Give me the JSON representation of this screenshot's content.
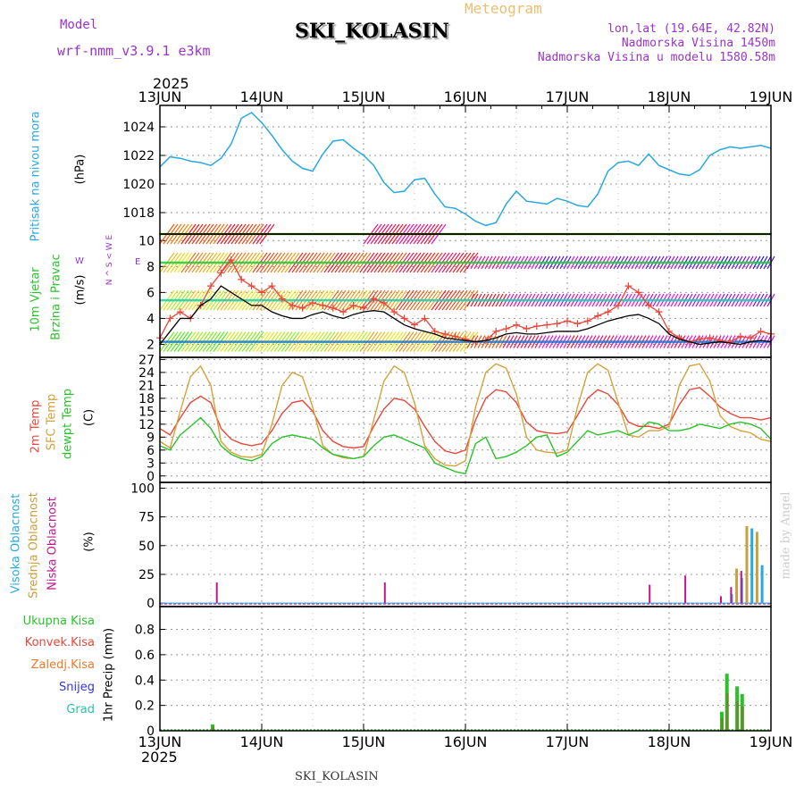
{
  "header": {
    "model_label": "Model",
    "model_name": "wrf-nmm_v3.9.1  e3km",
    "station": "SKI_KOLASIN",
    "meteogram": "Meteogram",
    "lonlat": "lon,lat (19.64E, 42.82N)",
    "elevation": "Nadmorska Visina 1450m",
    "model_elevation": "Nadmorska Visina u modelu 1580.58m"
  },
  "footer": {
    "station": "SKI_KOLASIN",
    "credit": "made by Angel"
  },
  "time_axis": {
    "year_top": "2025",
    "year_bottom": "2025",
    "labels": [
      "13JUN",
      "14JUN",
      "15JUN",
      "16JUN",
      "17JUN",
      "18JUN",
      "19JUN"
    ]
  },
  "colors": {
    "pressure": "#29a8e0",
    "temp2m": "#e8473a",
    "sfc": "#d4a23a",
    "dew": "#29c329",
    "wind_obs": "#e8473a",
    "wind_model": "#000000",
    "purple": "#9933cc",
    "high_cloud": "#29a8e0",
    "mid_cloud": "#c8a040",
    "low_cloud": "#c0188c",
    "total_precip": "#29c329",
    "conv_precip": "#e8473a",
    "frz_precip": "#f07828",
    "snow": "#3333ee",
    "hail": "#29c3a8"
  },
  "labels": {
    "pressure": "Pritisak na nivou mora",
    "pressure_unit": "(hPa)",
    "wind1": "10m Vjetar",
    "wind2": "Brzina i Pravac",
    "wind_unit": "(m/s)",
    "compass": "N  ^  S  <  W  E",
    "compass_w": "W",
    "compass_e": "E",
    "temp_2m": "2m Temp",
    "temp_sfc": "SFC Temp",
    "temp_dew": "dewpt Temp",
    "temp_unit": "(C)",
    "cloud_high": "Visoka Oblacnost",
    "cloud_mid": "Srednja Oblacnost",
    "cloud_low": "Niska Oblacnost",
    "cloud_unit": "(%)",
    "precip_total": "Ukupna Kisa",
    "precip_conv": "Konvek.Kisa",
    "precip_frz": "Zaledj.Kisa",
    "precip_snow": "Snijeg",
    "precip_hail": "Grad",
    "precip_unit": "1hr Precip (mm)"
  },
  "chart_data": [
    {
      "type": "line",
      "title": "Pritisak na nivou mora",
      "ylabel": "(hPa)",
      "ylim": [
        1016.5,
        1025.5
      ],
      "yticks": [
        1018,
        1020,
        1022,
        1024
      ],
      "x_days": [
        0,
        0.1,
        0.2,
        0.3,
        0.4,
        0.5,
        0.6,
        0.7,
        0.8,
        0.9,
        1.0,
        1.1,
        1.2,
        1.3,
        1.4,
        1.5,
        1.6,
        1.7,
        1.8,
        1.9,
        2.0,
        2.1,
        2.2,
        2.3,
        2.4,
        2.5,
        2.6,
        2.7,
        2.8,
        2.9,
        3.0,
        3.1,
        3.2,
        3.3,
        3.4,
        3.5,
        3.6,
        3.7,
        3.8,
        3.9,
        4.0,
        4.1,
        4.2,
        4.3,
        4.4,
        4.5,
        4.6,
        4.7,
        4.8,
        4.9,
        5.0,
        5.1,
        5.2,
        5.3,
        5.4,
        5.5,
        5.6,
        5.7,
        5.8,
        5.9,
        6.0
      ],
      "series": [
        {
          "name": "Pressure",
          "color": "pressure",
          "values": [
            1021.2,
            1021.9,
            1021.8,
            1021.6,
            1021.5,
            1021.3,
            1021.8,
            1022.8,
            1024.6,
            1025.0,
            1024.3,
            1023.4,
            1022.4,
            1021.6,
            1021.1,
            1020.9,
            1022.1,
            1023.0,
            1023.1,
            1022.5,
            1022.0,
            1021.3,
            1020.1,
            1019.4,
            1019.5,
            1020.3,
            1020.4,
            1019.3,
            1018.4,
            1018.3,
            1017.9,
            1017.4,
            1017.1,
            1017.3,
            1018.6,
            1019.5,
            1018.8,
            1018.7,
            1018.6,
            1019.0,
            1018.8,
            1018.5,
            1018.4,
            1019.3,
            1020.9,
            1021.5,
            1021.6,
            1021.3,
            1022.1,
            1021.3,
            1021.0,
            1020.7,
            1020.6,
            1021.0,
            1022.0,
            1022.4,
            1022.6,
            1022.5,
            1022.6,
            1022.7,
            1022.5
          ]
        }
      ]
    },
    {
      "type": "line",
      "title": "10m Vjetar Brzina i Pravac",
      "ylabel": "(m/s)",
      "ylim": [
        1,
        10.5
      ],
      "yticks": [
        2,
        4,
        6,
        8,
        10
      ],
      "x_days": [
        0,
        0.1,
        0.2,
        0.3,
        0.4,
        0.5,
        0.6,
        0.7,
        0.8,
        0.9,
        1.0,
        1.1,
        1.2,
        1.3,
        1.4,
        1.5,
        1.6,
        1.7,
        1.8,
        1.9,
        2.0,
        2.1,
        2.2,
        2.3,
        2.4,
        2.5,
        2.6,
        2.7,
        2.8,
        2.9,
        3.0,
        3.1,
        3.2,
        3.3,
        3.4,
        3.5,
        3.6,
        3.7,
        3.8,
        3.9,
        4.0,
        4.1,
        4.2,
        4.3,
        4.4,
        4.5,
        4.6,
        4.7,
        4.8,
        4.9,
        5.0,
        5.1,
        5.2,
        5.3,
        5.4,
        5.5,
        5.6,
        5.7,
        5.8,
        5.9,
        6.0
      ],
      "series": [
        {
          "name": "Obs wind",
          "color": "wind_obs",
          "values": [
            2.5,
            4.0,
            4.5,
            4.0,
            5.0,
            6.5,
            7.5,
            8.5,
            7.0,
            6.5,
            6.0,
            6.5,
            5.5,
            5.0,
            4.8,
            5.2,
            5.0,
            4.8,
            4.5,
            5.0,
            4.8,
            5.5,
            5.2,
            4.5,
            4.0,
            3.5,
            4.0,
            3.0,
            2.8,
            2.6,
            2.4,
            2.2,
            2.3,
            3.0,
            3.2,
            3.5,
            3.2,
            3.4,
            3.5,
            3.6,
            3.8,
            3.6,
            3.8,
            4.2,
            4.5,
            5.0,
            6.5,
            6.0,
            5.0,
            4.5,
            3.0,
            2.5,
            2.2,
            2.4,
            2.5,
            2.3,
            2.2,
            2.6,
            2.5,
            3.0,
            2.8
          ]
        },
        {
          "name": "Model wind",
          "color": "wind_model",
          "values": [
            2.0,
            3.0,
            4.0,
            4.0,
            5.0,
            5.5,
            6.5,
            6.0,
            5.5,
            5.0,
            5.0,
            4.5,
            4.2,
            4.0,
            4.0,
            4.3,
            4.5,
            4.2,
            4.0,
            4.3,
            4.5,
            4.6,
            4.5,
            4.0,
            3.5,
            3.2,
            3.0,
            2.8,
            2.5,
            2.4,
            2.3,
            2.2,
            2.3,
            2.5,
            2.8,
            2.9,
            2.8,
            2.8,
            2.9,
            3.0,
            3.0,
            3.0,
            3.2,
            3.5,
            3.8,
            4.0,
            4.2,
            4.3,
            4.0,
            3.6,
            2.8,
            2.4,
            2.2,
            2.0,
            2.1,
            2.2,
            2.1,
            2.0,
            2.2,
            2.3,
            2.2
          ]
        }
      ]
    },
    {
      "type": "line",
      "title": "2m Temp / SFC Temp / dewpt Temp",
      "ylabel": "(C)",
      "ylim": [
        -1.5,
        27.5
      ],
      "yticks": [
        0,
        3,
        6,
        9,
        12,
        15,
        18,
        21,
        24,
        27
      ],
      "x_days": [
        0,
        0.1,
        0.2,
        0.3,
        0.4,
        0.5,
        0.6,
        0.7,
        0.8,
        0.9,
        1.0,
        1.1,
        1.2,
        1.3,
        1.4,
        1.5,
        1.6,
        1.7,
        1.8,
        1.9,
        2.0,
        2.1,
        2.2,
        2.3,
        2.4,
        2.5,
        2.6,
        2.7,
        2.8,
        2.9,
        3.0,
        3.1,
        3.2,
        3.3,
        3.4,
        3.5,
        3.6,
        3.7,
        3.8,
        3.9,
        4.0,
        4.1,
        4.2,
        4.3,
        4.4,
        4.5,
        4.6,
        4.7,
        4.8,
        4.9,
        5.0,
        5.1,
        5.2,
        5.3,
        5.4,
        5.5,
        5.6,
        5.7,
        5.8,
        5.9,
        6.0
      ],
      "series": [
        {
          "name": "2m Temp",
          "color": "temp2m",
          "values": [
            11.0,
            9.5,
            13.5,
            17.0,
            18.5,
            17.0,
            11.0,
            8.5,
            7.5,
            7.0,
            7.5,
            10.5,
            14.5,
            17.0,
            17.5,
            15.0,
            10.5,
            8.0,
            6.8,
            6.5,
            6.8,
            11.5,
            15.5,
            18.0,
            17.5,
            15.5,
            11.5,
            8.0,
            5.8,
            5.2,
            6.0,
            13.0,
            18.0,
            20.0,
            19.5,
            17.0,
            12.5,
            10.5,
            10.0,
            9.8,
            10.2,
            14.0,
            18.0,
            20.0,
            19.0,
            16.5,
            12.5,
            11.5,
            11.5,
            11.0,
            12.0,
            16.5,
            20.0,
            20.5,
            18.5,
            16.0,
            14.5,
            13.5,
            13.5,
            13.0,
            13.5
          ]
        },
        {
          "name": "SFC Temp",
          "color": "sfc",
          "values": [
            8.0,
            6.5,
            15.0,
            23.0,
            25.5,
            21.0,
            8.0,
            5.5,
            4.5,
            4.3,
            5.0,
            12.0,
            21.0,
            24.0,
            23.0,
            16.0,
            7.0,
            5.0,
            4.2,
            4.0,
            4.5,
            13.0,
            22.0,
            25.5,
            24.0,
            17.0,
            7.0,
            4.0,
            2.5,
            2.3,
            3.5,
            16.0,
            24.0,
            26.0,
            25.0,
            19.0,
            9.0,
            6.0,
            5.5,
            5.3,
            6.0,
            16.0,
            24.0,
            26.0,
            24.5,
            17.0,
            9.5,
            9.0,
            10.5,
            10.5,
            11.5,
            21.0,
            25.5,
            26.0,
            22.0,
            14.0,
            11.5,
            10.5,
            10.0,
            8.5,
            8.0
          ]
        },
        {
          "name": "dewpt Temp",
          "color": "dew",
          "values": [
            7.0,
            6.0,
            9.5,
            11.5,
            13.5,
            11.0,
            7.0,
            5.0,
            4.0,
            3.5,
            4.5,
            7.5,
            9.0,
            9.5,
            9.0,
            8.5,
            6.5,
            5.0,
            4.5,
            4.0,
            4.5,
            7.0,
            9.0,
            9.5,
            8.5,
            7.5,
            6.5,
            3.0,
            2.0,
            1.0,
            0.5,
            7.5,
            9.0,
            4.0,
            4.5,
            5.5,
            7.0,
            9.0,
            9.5,
            4.5,
            5.5,
            8.0,
            10.5,
            9.5,
            10.0,
            10.5,
            9.5,
            10.5,
            12.5,
            12.0,
            10.5,
            10.5,
            11.0,
            12.0,
            11.5,
            11.0,
            12.0,
            12.5,
            12.0,
            11.0,
            8.5
          ]
        }
      ]
    },
    {
      "type": "bar",
      "title": "Oblacnost",
      "ylabel": "(%)",
      "ylim": [
        -3,
        105
      ],
      "yticks": [
        0,
        25,
        50,
        75,
        100
      ],
      "series": [
        {
          "name": "Visoka Oblacnost",
          "color": "high_cloud",
          "x_days": [
            5.6,
            5.7,
            5.8,
            5.9
          ],
          "values": [
            8,
            22,
            65,
            33
          ]
        },
        {
          "name": "Srednja Oblacnost",
          "color": "mid_cloud",
          "x_days": [
            5.65,
            5.75,
            5.85
          ],
          "values": [
            30,
            67,
            62
          ]
        },
        {
          "name": "Niska Oblacnost",
          "color": "low_cloud",
          "x_days": [
            0.55,
            2.2,
            4.8,
            5.15,
            5.5,
            5.6,
            5.7
          ],
          "values": [
            18,
            18,
            16,
            24,
            6,
            14,
            28
          ]
        }
      ]
    },
    {
      "type": "bar",
      "title": "1hr Precip",
      "ylabel": "1hr Precip (mm)",
      "ylim": [
        0,
        0.98
      ],
      "yticks": [
        0,
        0.2,
        0.4,
        0.6,
        0.8
      ],
      "series": [
        {
          "name": "Ukupna Kisa",
          "color": "total_precip",
          "x_days": [
            0.5,
            4.85,
            5.5,
            5.55,
            5.65,
            5.7
          ],
          "values": [
            0.05,
            0.01,
            0.15,
            0.45,
            0.35,
            0.29
          ]
        },
        {
          "name": "Konvek.Kisa",
          "color": "conv_precip",
          "x_days": [],
          "values": []
        },
        {
          "name": "Zaledj.Kisa",
          "color": "frz_precip",
          "x_days": [],
          "values": []
        },
        {
          "name": "Snijeg",
          "color": "snow",
          "x_days": [],
          "values": []
        },
        {
          "name": "Grad",
          "color": "hail",
          "x_days": [],
          "values": []
        }
      ]
    }
  ]
}
